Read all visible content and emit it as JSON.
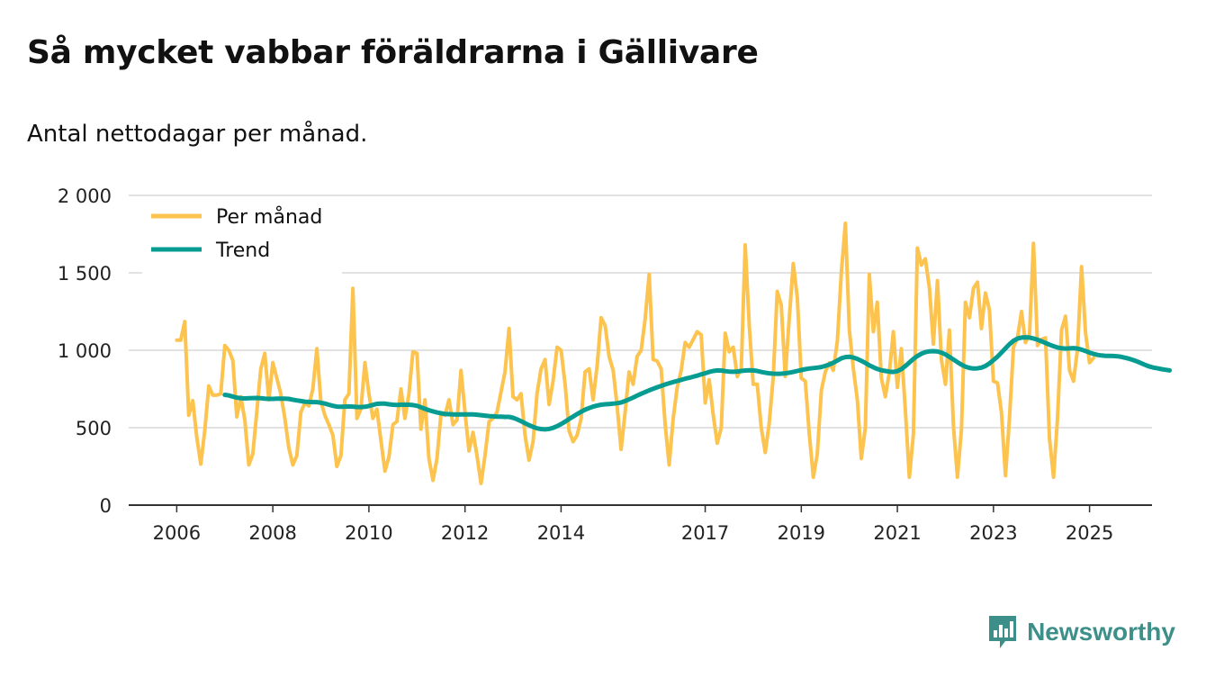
{
  "title": "Så mycket vabbar föräldrarna i Gällivare",
  "subtitle": "Antal nettodagar per månad.",
  "brand": {
    "name": "Newsworthy",
    "color": "#3d8f89"
  },
  "colors": {
    "monthly": "#fcc34e",
    "trend": "#069c91",
    "grid": "#d9d9d9",
    "axis": "#333333"
  },
  "chart_data": {
    "type": "line",
    "title": "Så mycket vabbar föräldrarna i Gällivare",
    "subtitle": "Antal nettodagar per månad.",
    "xlabel": "",
    "ylabel": "",
    "grid": true,
    "legend_position": "top-left",
    "xlim": [
      2005.0,
      2026.3
    ],
    "ylim": [
      0,
      2000
    ],
    "y_ticks": [
      0,
      500,
      1000,
      1500,
      2000
    ],
    "y_tick_labels": [
      "0",
      "500",
      "1 000",
      "1 500",
      "2 000"
    ],
    "x_ticks": [
      2006,
      2008,
      2010,
      2012,
      2014,
      2017,
      2019,
      2021,
      2023,
      2025
    ],
    "x_tick_labels": [
      "2006",
      "2008",
      "2010",
      "2012",
      "2014",
      "2017",
      "2019",
      "2021",
      "2023",
      "2025"
    ],
    "start_year": 2006,
    "start_month": 1,
    "series": [
      {
        "name": "Per månad",
        "color": "#fcc34e",
        "values": [
          1065,
          1065,
          1185,
          580,
          675,
          440,
          265,
          480,
          770,
          710,
          710,
          720,
          1030,
          1000,
          935,
          570,
          700,
          550,
          260,
          330,
          600,
          880,
          980,
          680,
          920,
          820,
          720,
          560,
          370,
          260,
          320,
          600,
          660,
          640,
          750,
          1010,
          670,
          580,
          520,
          450,
          250,
          320,
          680,
          720,
          1400,
          560,
          620,
          920,
          720,
          560,
          620,
          420,
          220,
          310,
          520,
          540,
          750,
          560,
          720,
          990,
          980,
          490,
          680,
          300,
          160,
          300,
          590,
          580,
          680,
          520,
          550,
          870,
          600,
          350,
          470,
          320,
          140,
          320,
          540,
          560,
          600,
          730,
          860,
          1140,
          700,
          680,
          720,
          450,
          290,
          410,
          720,
          880,
          940,
          650,
          800,
          1020,
          1000,
          780,
          480,
          410,
          450,
          560,
          860,
          880,
          680,
          900,
          1210,
          1160,
          960,
          870,
          640,
          360,
          600,
          860,
          780,
          960,
          1000,
          1200,
          1490,
          940,
          930,
          880,
          520,
          260,
          560,
          760,
          870,
          1050,
          1020,
          1070,
          1120,
          1100,
          660,
          810,
          580,
          400,
          500,
          1110,
          990,
          1020,
          830,
          880,
          1680,
          1160,
          780,
          780,
          500,
          340,
          530,
          830,
          1380,
          1290,
          830,
          1210,
          1560,
          1340,
          820,
          800,
          460,
          180,
          330,
          740,
          860,
          920,
          870,
          1060,
          1500,
          1820,
          1130,
          880,
          680,
          300,
          500,
          1490,
          1120,
          1310,
          820,
          700,
          860,
          1120,
          760,
          1010,
          610,
          180,
          460,
          1660,
          1550,
          1590,
          1400,
          1040,
          1450,
          940,
          780,
          1130,
          510,
          180,
          490,
          1310,
          1210,
          1400,
          1440,
          1140,
          1370,
          1260,
          800,
          790,
          600,
          190,
          560,
          1020,
          1080,
          1250,
          1050,
          1100,
          1690,
          1030,
          1070,
          1080,
          430,
          180,
          560,
          1130,
          1220,
          870,
          800,
          1010,
          1540,
          1110,
          920,
          950
        ]
      },
      {
        "name": "Trend",
        "color": "#069c91",
        "start_index": 12,
        "values": [
          712,
          708,
          701,
          694,
          690,
          689,
          690,
          691,
          692,
          690,
          688,
          686,
          686,
          687,
          688,
          688,
          686,
          681,
          676,
          672,
          668,
          666,
          665,
          665,
          661,
          656,
          648,
          641,
          636,
          635,
          636,
          637,
          636,
          634,
          633,
          635,
          640,
          647,
          654,
          656,
          655,
          651,
          648,
          647,
          648,
          649,
          648,
          646,
          641,
          632,
          622,
          613,
          605,
          598,
          593,
          589,
          587,
          586,
          585,
          586,
          586,
          586,
          586,
          584,
          581,
          578,
          575,
          573,
          571,
          571,
          570,
          570,
          564,
          554,
          542,
          529,
          516,
          505,
          496,
          491,
          489,
          492,
          499,
          510,
          523,
          539,
          556,
          572,
          588,
          603,
          616,
          627,
          636,
          643,
          648,
          651,
          653,
          655,
          658,
          663,
          672,
          683,
          695,
          707,
          719,
          730,
          741,
          751,
          761,
          770,
          779,
          787,
          795,
          802,
          809,
          816,
          822,
          829,
          836,
          844,
          852,
          860,
          866,
          870,
          869,
          865,
          862,
          861,
          863,
          866,
          869,
          871,
          870,
          866,
          860,
          855,
          851,
          849,
          848,
          849,
          851,
          855,
          860,
          866,
          872,
          878,
          882,
          885,
          888,
          892,
          899,
          908,
          920,
          934,
          948,
          956,
          958,
          953,
          944,
          932,
          918,
          903,
          890,
          879,
          871,
          866,
          862,
          860,
          865,
          878,
          898,
          921,
          944,
          963,
          978,
          988,
          993,
          994,
          992,
          985,
          973,
          957,
          940,
          923,
          907,
          894,
          886,
          882,
          883,
          888,
          898,
          915,
          936,
          959,
          985,
          1012,
          1039,
          1061,
          1075,
          1082,
          1084,
          1082,
          1076,
          1068,
          1058,
          1047,
          1036,
          1026,
          1018,
          1013,
          1011,
          1012,
          1014,
          1011,
          1004,
          995,
          985,
          977,
          970,
          966,
          964,
          964,
          963,
          961,
          957,
          951,
          944,
          936,
          926,
          915,
          904,
          895,
          888,
          883,
          878,
          874,
          870
        ]
      }
    ]
  }
}
